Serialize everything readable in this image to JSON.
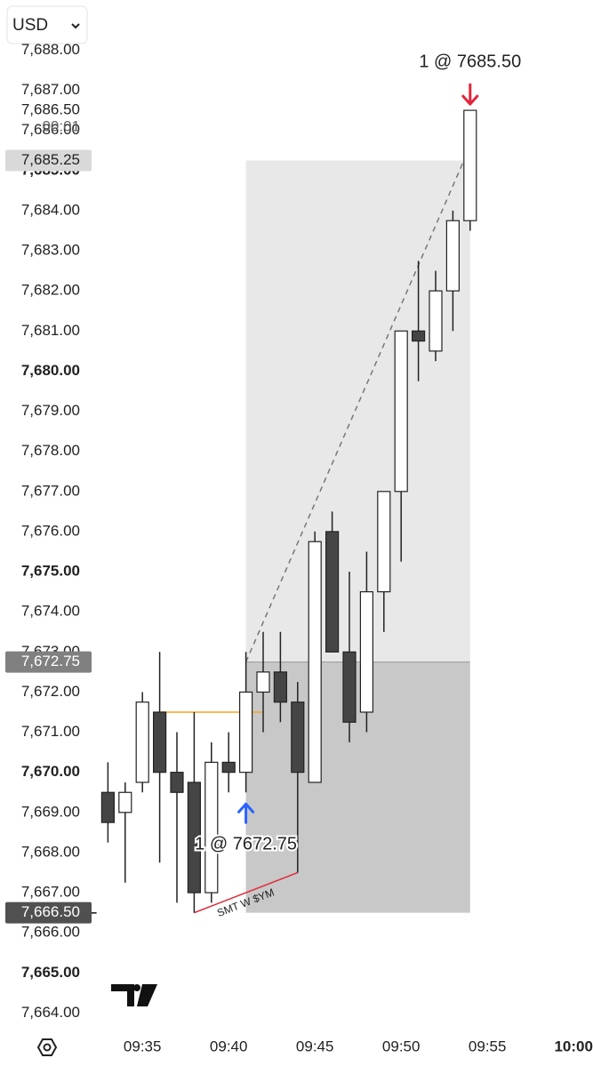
{
  "chart_data": {
    "type": "candlestick",
    "currency": "USD",
    "x": [
      "09:33",
      "09:34",
      "09:35",
      "09:36",
      "09:37",
      "09:38",
      "09:39",
      "09:40",
      "09:41",
      "09:42",
      "09:43",
      "09:44",
      "09:45",
      "09:46",
      "09:47",
      "09:48",
      "09:49",
      "09:50",
      "09:51",
      "09:52",
      "09:53",
      "09:54"
    ],
    "open": [
      7669.5,
      7669.0,
      7669.75,
      7671.5,
      7670.0,
      7669.75,
      7667.0,
      7670.25,
      7670.0,
      7672.0,
      7672.5,
      7671.75,
      7669.75,
      7676.0,
      7673.0,
      7671.5,
      7674.5,
      7677.0,
      7681.0,
      7680.5,
      7682.0,
      7683.75
    ],
    "high": [
      7670.25,
      7669.75,
      7672.0,
      7673.0,
      7671.0,
      7671.5,
      7670.75,
      7671.0,
      7673.0,
      7673.5,
      7673.5,
      7672.25,
      7676.0,
      7676.5,
      7675.0,
      7675.5,
      7677.0,
      7681.0,
      7682.75,
      7682.5,
      7684.0,
      7686.5
    ],
    "low": [
      7668.25,
      7667.25,
      7669.5,
      7667.75,
      7666.75,
      7666.5,
      7666.75,
      7669.5,
      7669.5,
      7671.0,
      7671.25,
      7667.5,
      7669.75,
      7673.0,
      7670.75,
      7671.0,
      7673.5,
      7675.25,
      7679.75,
      7680.25,
      7681.0,
      7683.5
    ],
    "close": [
      7668.75,
      7669.5,
      7671.75,
      7670.0,
      7669.5,
      7667.0,
      7670.25,
      7670.0,
      7672.0,
      7672.5,
      7671.75,
      7670.0,
      7675.75,
      7673.0,
      7671.25,
      7674.5,
      7677.0,
      7681.0,
      7680.75,
      7682.0,
      7683.75,
      7686.5
    ],
    "up_color": "#ffffff",
    "down_color": "#454545",
    "xlim": [
      "09:27",
      "10:01"
    ],
    "xticks": [
      "09:35",
      "09:40",
      "09:45",
      "09:50",
      "09:55",
      "10:00"
    ],
    "ylim": [
      7663.5,
      7689.25
    ],
    "yticks": [
      {
        "value": 7664,
        "label": "7,664.00"
      },
      {
        "value": 7665,
        "label": "7,665.00"
      },
      {
        "value": 7666,
        "label": "7,666.00"
      },
      {
        "value": 7667,
        "label": "7,667.00"
      },
      {
        "value": 7668,
        "label": "7,668.00"
      },
      {
        "value": 7669,
        "label": "7,669.00"
      },
      {
        "value": 7670,
        "label": "7,670.00"
      },
      {
        "value": 7671,
        "label": "7,671.00"
      },
      {
        "value": 7672,
        "label": "7,672.00"
      },
      {
        "value": 7673,
        "label": "7,673.00"
      },
      {
        "value": 7674,
        "label": "7,674.00"
      },
      {
        "value": 7675,
        "label": "7,675.00"
      },
      {
        "value": 7676,
        "label": "7,676.00"
      },
      {
        "value": 7677,
        "label": "7,677.00"
      },
      {
        "value": 7678,
        "label": "7,678.00"
      },
      {
        "value": 7679,
        "label": "7,679.00"
      },
      {
        "value": 7680,
        "label": "7,680.00"
      },
      {
        "value": 7681,
        "label": "7,681.00"
      },
      {
        "value": 7682,
        "label": "7,682.00"
      },
      {
        "value": 7683,
        "label": "7,683.00"
      },
      {
        "value": 7684,
        "label": "7,684.00"
      },
      {
        "value": 7685,
        "label": "7,685.00"
      },
      {
        "value": 7686,
        "label": "7,686.00"
      },
      {
        "value": 7687,
        "label": "7,687.00"
      },
      {
        "value": 7688,
        "label": "7,688.00"
      }
    ],
    "position": {
      "entry": 7672.75,
      "target": 7685.25,
      "stop": 7666.5,
      "start": "09:41",
      "end": "09:54"
    },
    "lines": [
      {
        "from": [
          "09:36",
          7671.5
        ],
        "to": [
          "09:42",
          7671.5
        ],
        "color": "#f5a623"
      },
      {
        "from": [
          "09:38",
          7666.5
        ],
        "to": [
          "09:44",
          7667.5
        ],
        "color": "#e03040",
        "label": "SMT W $YM"
      }
    ],
    "trades": [
      {
        "x": "09:41",
        "label": "1 @ 7672.75",
        "direction": "buy",
        "color": "#2962ff"
      },
      {
        "x": "09:54",
        "label": "1 @ 7685.50",
        "direction": "sell",
        "color": "#e0263b"
      }
    ],
    "price_labels": [
      {
        "value": 7686.5,
        "label": "7,686.50",
        "sub": "00:01",
        "bg": "none",
        "color": "#222222"
      },
      {
        "value": 7685.25,
        "label": "7,685.25",
        "bg": "#d9d9d9",
        "color": "#222222"
      },
      {
        "value": 7672.75,
        "label": "7,672.75",
        "bg": "#808080",
        "color": "#ffffff"
      },
      {
        "value": 7666.5,
        "label": "7,666.50",
        "bg": "#505050",
        "color": "#ffffff"
      }
    ]
  }
}
